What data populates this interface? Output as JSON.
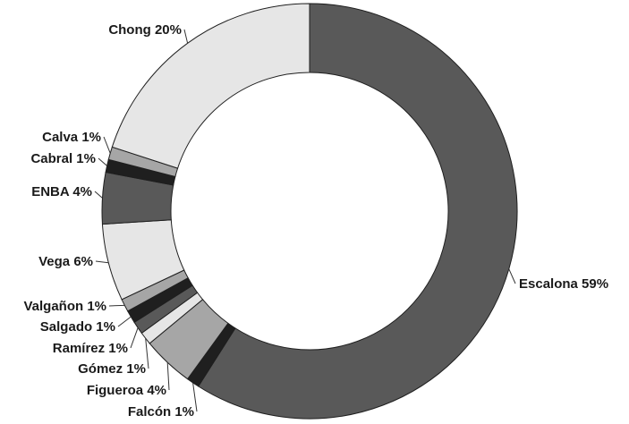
{
  "chart_data": {
    "type": "pie",
    "donut": true,
    "slices": [
      {
        "name": "Escalona",
        "value": 59,
        "label": "Escalona 59%",
        "color": "#595959"
      },
      {
        "name": "Falcón",
        "value": 1,
        "label": "Falcón 1%",
        "color": "#1f1f1f"
      },
      {
        "name": "Figueroa",
        "value": 4,
        "label": "Figueroa 4%",
        "color": "#a6a6a6"
      },
      {
        "name": "Gómez",
        "value": 1,
        "label": "Gómez 1%",
        "color": "#e6e6e6"
      },
      {
        "name": "Ramírez",
        "value": 1,
        "label": "Ramírez 1%",
        "color": "#595959"
      },
      {
        "name": "Salgado",
        "value": 1,
        "label": "Salgado 1%",
        "color": "#1f1f1f"
      },
      {
        "name": "Valgañon",
        "value": 1,
        "label": "Valgañon 1%",
        "color": "#a6a6a6"
      },
      {
        "name": "Vega",
        "value": 6,
        "label": "Vega 6%",
        "color": "#e6e6e6"
      },
      {
        "name": "ENBA",
        "value": 4,
        "label": "ENBA 4%",
        "color": "#595959"
      },
      {
        "name": "Cabral",
        "value": 1,
        "label": "Cabral 1%",
        "color": "#1f1f1f"
      },
      {
        "name": "Calva",
        "value": 1,
        "label": "Calva 1%",
        "color": "#a6a6a6"
      },
      {
        "name": "Chong",
        "value": 20,
        "label": "Chong 20%",
        "color": "#e6e6e6"
      }
    ],
    "start": "12 o'clock",
    "direction": "clockwise",
    "legend": "none"
  }
}
